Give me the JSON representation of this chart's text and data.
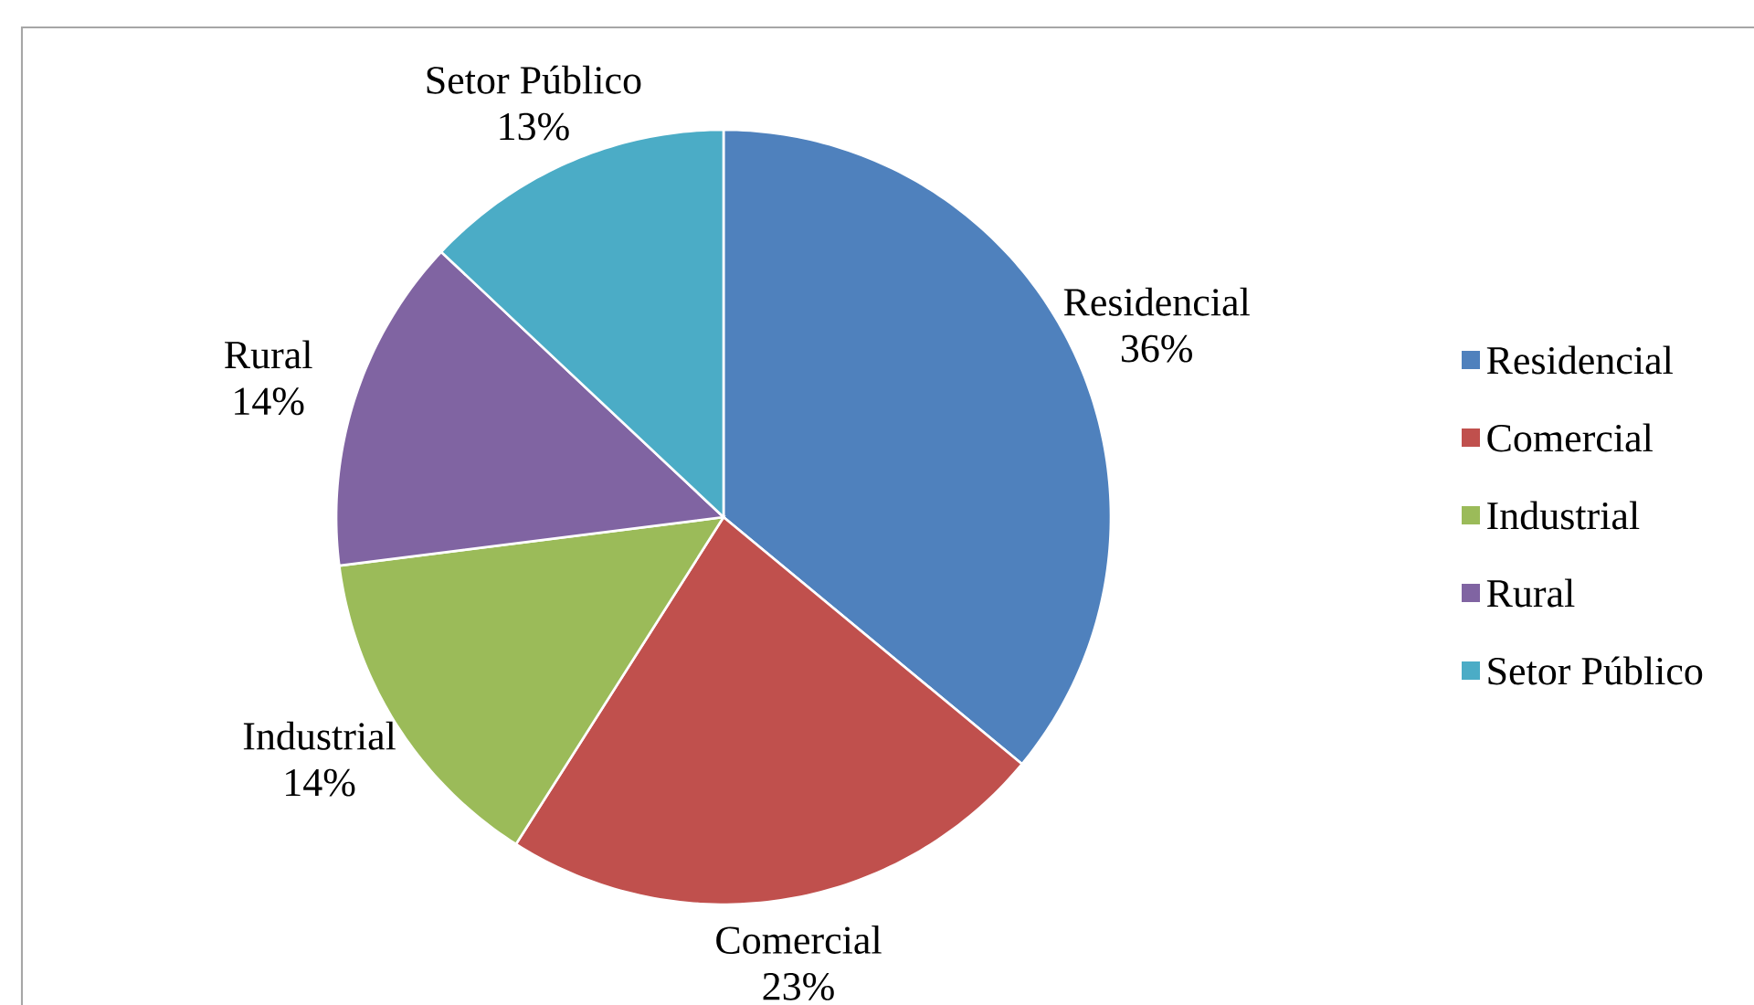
{
  "chart_data": {
    "type": "pie",
    "categories": [
      "Residencial",
      "Comercial",
      "Industrial",
      "Rural",
      "Setor Público"
    ],
    "values": [
      36,
      23,
      14,
      14,
      13
    ],
    "colors": [
      "#4f81bd",
      "#c0504d",
      "#9bbb59",
      "#8064a2",
      "#4bacc6"
    ],
    "value_labels": [
      "36%",
      "23%",
      "14%",
      "14%",
      "13%"
    ],
    "legend": "right"
  }
}
